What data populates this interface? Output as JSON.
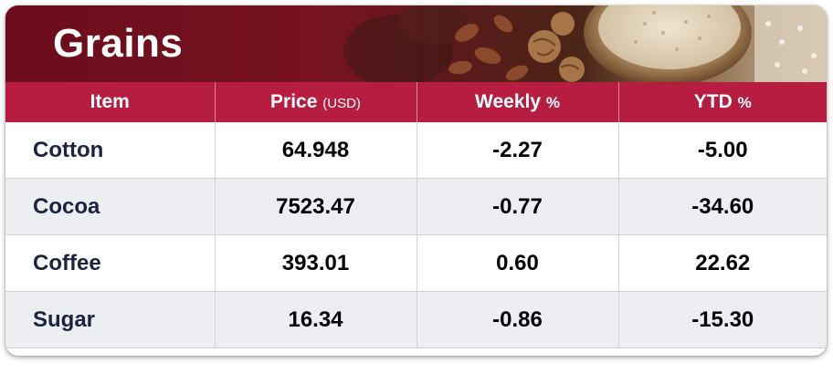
{
  "title": "Grains",
  "columns": {
    "item": "Item",
    "price": "Price",
    "price_unit": "(USD)",
    "weekly": "Weekly",
    "weekly_unit": "%",
    "ytd": "YTD",
    "ytd_unit": "%"
  },
  "rows": [
    {
      "item": "Cotton",
      "price": "64.948",
      "weekly": "-2.27",
      "ytd": "-5.00"
    },
    {
      "item": "Cocoa",
      "price": "7523.47",
      "weekly": "-0.77",
      "ytd": "-34.60"
    },
    {
      "item": "Coffee",
      "price": "393.01",
      "weekly": "0.60",
      "ytd": "22.62"
    },
    {
      "item": "Sugar",
      "price": "16.34",
      "weekly": "-0.86",
      "ytd": "-15.30"
    }
  ],
  "colors": {
    "banner": "#7a1422",
    "header": "#b71d40",
    "stripe": "#eceef1",
    "item_text": "#1a2340"
  }
}
